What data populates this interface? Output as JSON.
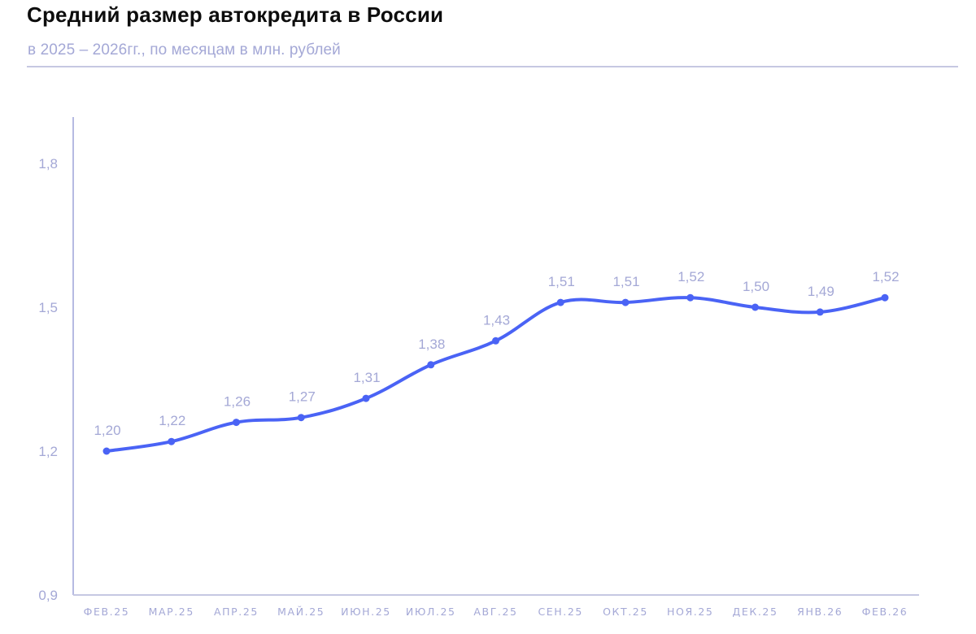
{
  "header": {
    "title": "Средний размер автокредита в России",
    "subtitle": "в 2025 – 2026гг., по месяцам в млн. рублей"
  },
  "colors": {
    "line": "#4a63f5",
    "axis": "#9ea3d9",
    "labels": "#a4a8d6",
    "separator": "#c6c8e2",
    "title": "#0d0d0d"
  },
  "chart_data": {
    "type": "line",
    "title": "Средний размер автокредита в России",
    "subtitle": "в 2025 – 2026гг., по месяцам в млн. рублей",
    "xlabel": "",
    "ylabel": "",
    "categories": [
      "ФЕВ.25",
      "МАР.25",
      "АПР.25",
      "МАЙ.25",
      "ИЮН.25",
      "ИЮЛ.25",
      "АВГ.25",
      "СЕН.25",
      "ОКТ.25",
      "НОЯ.25",
      "ДЕК.25",
      "ЯНВ.26",
      "ФЕВ.26"
    ],
    "series": [
      {
        "name": "Средний размер автокредита, млн руб.",
        "values": [
          1.2,
          1.22,
          1.26,
          1.27,
          1.31,
          1.38,
          1.43,
          1.51,
          1.51,
          1.52,
          1.5,
          1.49,
          1.52
        ],
        "labels": [
          "1,20",
          "1,22",
          "1,26",
          "1,27",
          "1,31",
          "1,38",
          "1,43",
          "1,51",
          "1,51",
          "1,52",
          "1,50",
          "1,49",
          "1,52"
        ]
      }
    ],
    "ylim": [
      0.9,
      1.9
    ],
    "yticks": [
      0.9,
      1.2,
      1.5,
      1.8
    ],
    "ytick_labels": [
      "0,9",
      "1,2",
      "1,5",
      "1,8"
    ],
    "grid": false,
    "legend": "none",
    "smooth": true,
    "markers": true,
    "data_labels": true
  }
}
